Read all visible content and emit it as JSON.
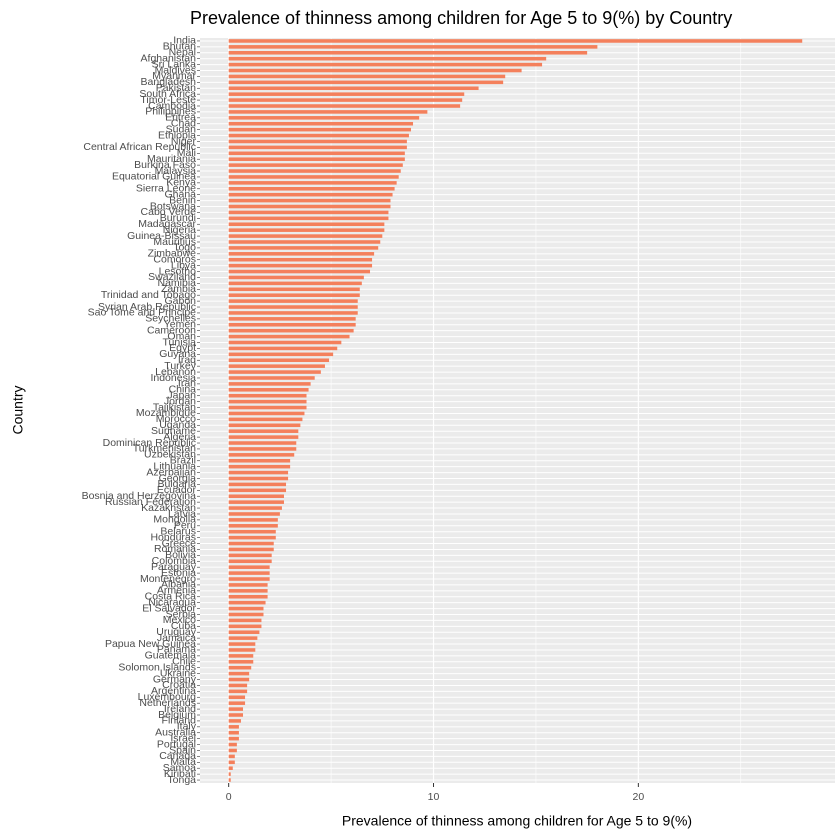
{
  "chart_data": {
    "type": "barh",
    "title": "Prevalence of thinness among children for Age 5 to 9(%) by Country",
    "xlabel": "Prevalence of thinness among children for Age 5 to 9(%)",
    "ylabel": "Country",
    "color": "#f4805c",
    "grid": true,
    "xlim": [
      -1.4,
      29.6
    ],
    "xticks": [
      0,
      10,
      20
    ],
    "categories": [
      "India",
      "Bhutan",
      "Nepal",
      "Afghanistan",
      "Sri Lanka",
      "Maldives",
      "Myanmar",
      "Bangladesh",
      "Pakistan",
      "South Africa",
      "Timor-Leste",
      "Cambodia",
      "Philippines",
      "Eritrea",
      "Chad",
      "Sudan",
      "Ethiopia",
      "Niger",
      "Central African Republic",
      "Mali",
      "Mauritania",
      "Burkina Faso",
      "Malaysia",
      "Equatorial Guinea",
      "Kenya",
      "Sierra Leone",
      "Ghana",
      "Benin",
      "Botswana",
      "Cabo Verde",
      "Burundi",
      "Madagascar",
      "Nigeria",
      "Guinea-Bissau",
      "Mauritius",
      "Togo",
      "Zimbabwe",
      "Comoros",
      "Libya",
      "Lesotho",
      "Swaziland",
      "Namibia",
      "Zambia",
      "Trinidad and Tobago",
      "Gabon",
      "Syrian Arab Republic",
      "Sao Tome and Principe",
      "Seychelles",
      "Yemen",
      "Cameroon",
      "Oman",
      "Tunisia",
      "Egypt",
      "Guyana",
      "Iraq",
      "Turkey",
      "Lebanon",
      "Indonesia",
      "Iran",
      "China",
      "Japan",
      "Jordan",
      "Tajikistan",
      "Mozambique",
      "Morocco",
      "Uganda",
      "Suriname",
      "Algeria",
      "Dominican Republic",
      "Turkmenistan",
      "Uzbekistan",
      "Brazil",
      "Lithuania",
      "Azerbaijan",
      "Georgia",
      "Bulgaria",
      "Ecuador",
      "Bosnia and Herzegovina",
      "Russian Federation",
      "Kazakhstan",
      "Latvia",
      "Mongolia",
      "Peru",
      "Belarus",
      "Honduras",
      "Greece",
      "Romania",
      "Bolivia",
      "Colombia",
      "Paraguay",
      "Estonia",
      "Montenegro",
      "Albania",
      "Armenia",
      "Costa Rica",
      "Nicaragua",
      "El Salvador",
      "Serbia",
      "Mexico",
      "Cuba",
      "Uruguay",
      "Jamaica",
      "Papua New Guinea",
      "Panama",
      "Guatemala",
      "Chile",
      "Solomon Islands",
      "Ukraine",
      "Germany",
      "Croatia",
      "Argentina",
      "Luxembourg",
      "Netherlands",
      "Ireland",
      "Belgium",
      "Finland",
      "Italy",
      "Australia",
      "Israel",
      "Portugal",
      "Spain",
      "Canada",
      "Malta",
      "Samoa",
      "Kiribati",
      "Tonga"
    ],
    "values": [
      28.0,
      18.0,
      17.5,
      15.5,
      15.3,
      14.3,
      13.5,
      13.4,
      12.2,
      11.5,
      11.4,
      11.3,
      9.7,
      9.3,
      9.0,
      8.9,
      8.8,
      8.7,
      8.7,
      8.6,
      8.6,
      8.5,
      8.4,
      8.3,
      8.2,
      8.1,
      8.0,
      7.9,
      7.9,
      7.8,
      7.8,
      7.6,
      7.6,
      7.5,
      7.4,
      7.3,
      7.1,
      7.0,
      7.0,
      6.9,
      6.6,
      6.5,
      6.4,
      6.4,
      6.3,
      6.3,
      6.3,
      6.2,
      6.2,
      6.1,
      5.9,
      5.5,
      5.3,
      5.1,
      4.9,
      4.7,
      4.5,
      4.2,
      4.0,
      3.9,
      3.8,
      3.8,
      3.8,
      3.7,
      3.6,
      3.5,
      3.4,
      3.4,
      3.3,
      3.3,
      3.2,
      3.0,
      3.0,
      2.9,
      2.9,
      2.8,
      2.8,
      2.7,
      2.7,
      2.6,
      2.5,
      2.4,
      2.4,
      2.3,
      2.3,
      2.2,
      2.2,
      2.1,
      2.1,
      2.0,
      2.0,
      2.0,
      1.9,
      1.9,
      1.9,
      1.8,
      1.7,
      1.7,
      1.6,
      1.6,
      1.5,
      1.4,
      1.3,
      1.3,
      1.2,
      1.2,
      1.1,
      1.0,
      1.0,
      0.9,
      0.9,
      0.8,
      0.8,
      0.7,
      0.7,
      0.6,
      0.5,
      0.5,
      0.5,
      0.4,
      0.4,
      0.3,
      0.3,
      0.2,
      0.1,
      0.1
    ]
  }
}
